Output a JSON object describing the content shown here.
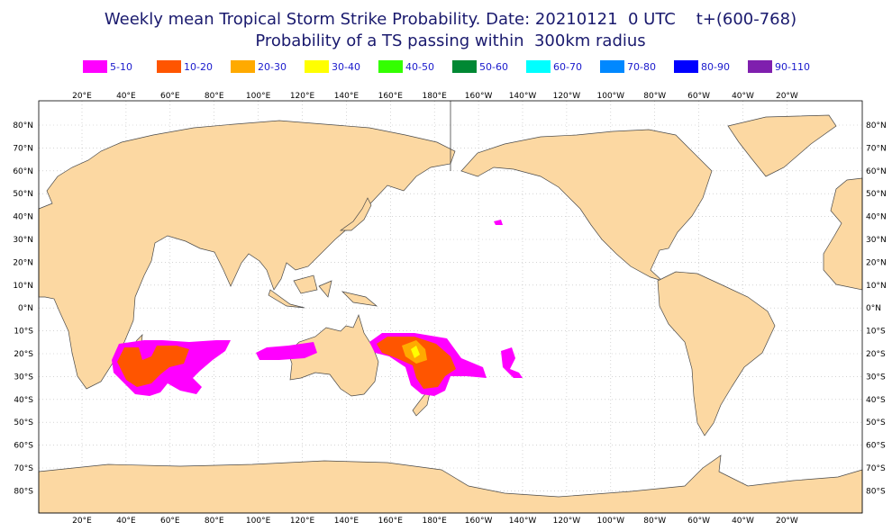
{
  "title": "Weekly mean Tropical Storm Strike Probability. Date: 20210121  0 UTC    t+(600-768)",
  "subtitle": "Probability of a TS passing within  300km radius",
  "legend": [
    {
      "label": "5-10",
      "color": "#ff00ff"
    },
    {
      "label": "10-20",
      "color": "#ff5500"
    },
    {
      "label": "20-30",
      "color": "#ffaa00"
    },
    {
      "label": "30-40",
      "color": "#ffff00"
    },
    {
      "label": "40-50",
      "color": "#33ff00"
    },
    {
      "label": "50-60",
      "color": "#008833"
    },
    {
      "label": "60-70",
      "color": "#00ffff"
    },
    {
      "label": "70-80",
      "color": "#0088ff"
    },
    {
      "label": "80-90",
      "color": "#0000ff"
    },
    {
      "label": "90-110",
      "color": "#7f1fae"
    }
  ],
  "lon_labels": [
    "20°E",
    "40°E",
    "60°E",
    "80°E",
    "100°E",
    "120°E",
    "140°E",
    "160°E",
    "180°E",
    "160°W",
    "140°W",
    "120°W",
    "100°W",
    "80°W",
    "60°W",
    "40°W",
    "20°W"
  ],
  "lat_labels": [
    "80°N",
    "70°N",
    "60°N",
    "50°N",
    "40°N",
    "30°N",
    "20°N",
    "10°N",
    "0°N",
    "10°S",
    "20°S",
    "30°S",
    "40°S",
    "50°S",
    "60°S",
    "70°S",
    "80°S"
  ]
}
